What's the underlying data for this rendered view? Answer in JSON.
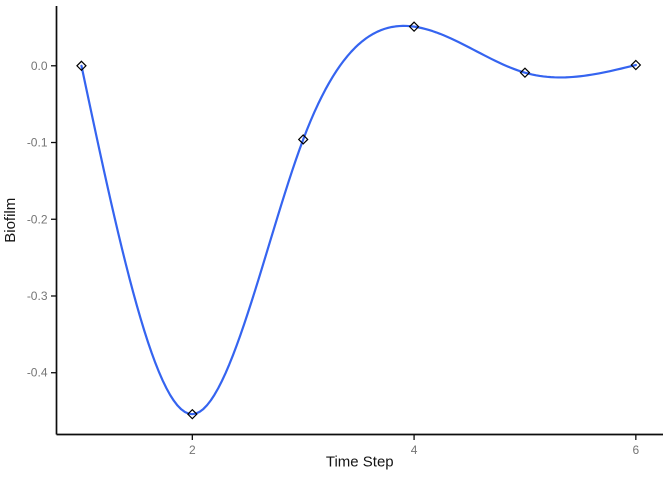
{
  "chart_data": {
    "type": "line",
    "title": "",
    "xlabel": "Time Step",
    "ylabel": "Biofilm",
    "x": [
      1,
      2,
      3,
      4,
      5,
      6
    ],
    "series": [
      {
        "name": "Biofilm",
        "values": [
          0.0,
          -0.454,
          -0.096,
          0.051,
          -0.009,
          0.001
        ]
      }
    ],
    "x_ticks": [
      2,
      4,
      6
    ],
    "y_ticks": [
      0.0,
      -0.1,
      -0.2,
      -0.3,
      -0.4
    ],
    "xlim": [
      0.775,
      6.245
    ],
    "ylim": [
      -0.4805,
      0.0779
    ],
    "grid": false,
    "legend_position": "none",
    "curve_style": "natural-cubic-spline",
    "marker_style": "open-diamond",
    "colors": {
      "line": "#3564F0",
      "marker_stroke": "#000000",
      "axis": "#0d0d0d",
      "tick_label": "#757575",
      "axis_title": "#141414",
      "background": "#ffffff"
    }
  }
}
